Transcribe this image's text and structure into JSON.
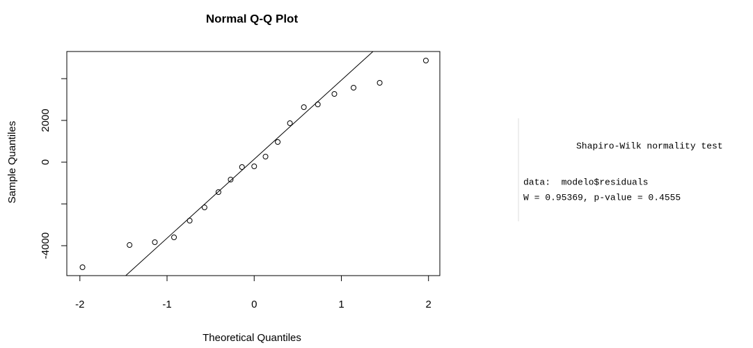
{
  "chart_data": {
    "type": "scatter",
    "title": "Normal Q-Q Plot",
    "xlabel": "Theoretical Quantiles",
    "ylabel": "Sample Quantiles",
    "x": [
      -1.97,
      -1.43,
      -1.14,
      -0.92,
      -0.74,
      -0.57,
      -0.41,
      -0.27,
      -0.14,
      0,
      0.13,
      0.27,
      0.41,
      0.57,
      0.73,
      0.92,
      1.14,
      1.44,
      1.97
    ],
    "y": [
      -5033,
      -3967,
      -3833,
      -3600,
      -2800,
      -2167,
      -1433,
      -833,
      -233,
      -200,
      267,
      967,
      1867,
      2633,
      2767,
      3267,
      3567,
      3800,
      4867
    ],
    "color": "#000000",
    "qqline": {
      "intercept": 143,
      "slope": 3783
    },
    "xlim": [
      -2.15,
      2.13
    ],
    "xticks": [
      -2,
      -1,
      0,
      1,
      2
    ],
    "ylim": [
      -5433,
      5300
    ],
    "yticks": [
      -4000,
      {
        "value": -2000,
        "label": null
      },
      0,
      2000,
      {
        "value": 4000,
        "label": null
      }
    ]
  },
  "console": {
    "title": "Shapiro-Wilk normality test",
    "lines": [
      "data:  modelo$residuals",
      "W = 0.95369, p-value = 0.4555"
    ]
  }
}
